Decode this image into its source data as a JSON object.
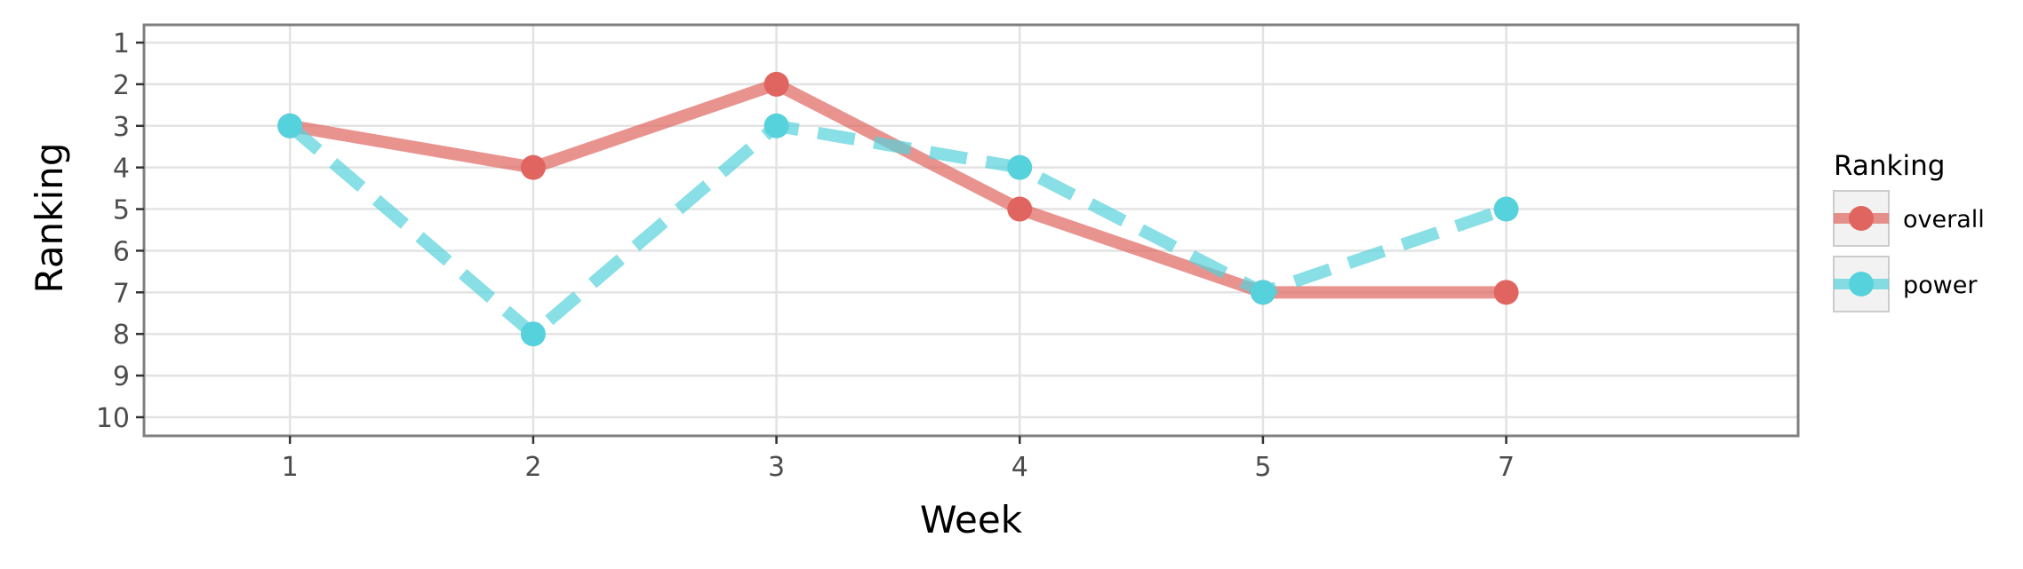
{
  "chart_data": {
    "type": "line",
    "xlabel": "Week",
    "ylabel": "Ranking",
    "x_categories": [
      "1",
      "2",
      "3",
      "4",
      "5",
      "7"
    ],
    "y_reversed": true,
    "ylim": [
      1,
      10
    ],
    "y_ticks": [
      "1",
      "2",
      "3",
      "4",
      "5",
      "6",
      "7",
      "8",
      "9",
      "10"
    ],
    "grid": true,
    "legend": {
      "title": "Ranking",
      "placement": "right"
    },
    "series": [
      {
        "name": "overall",
        "values": [
          3,
          4,
          2,
          5,
          7,
          7
        ],
        "color": "#e06560",
        "line_style": "solid"
      },
      {
        "name": "power",
        "values": [
          3,
          8,
          3,
          4,
          7,
          5
        ],
        "color": "#56d2dc",
        "line_style": "dashed"
      }
    ]
  }
}
